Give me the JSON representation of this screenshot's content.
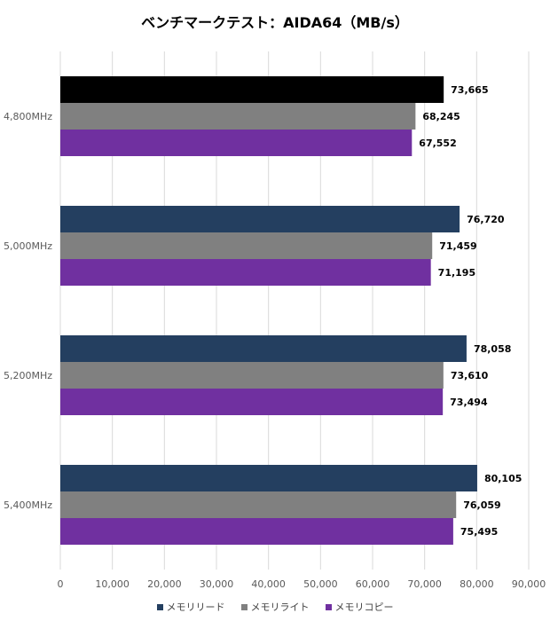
{
  "chart_data": {
    "type": "bar",
    "orientation": "horizontal",
    "title": "ベンチマークテスト：AIDA64（MB/s）",
    "categories": [
      "4,800MHz",
      "5,000MHz",
      "5,200MHz",
      "5,400MHz"
    ],
    "series": [
      {
        "name": "メモリリード",
        "color": "#243f60",
        "values": [
          73665,
          76720,
          78058,
          80105
        ],
        "labels": [
          "73,665",
          "76,720",
          "78,058",
          "80,105"
        ]
      },
      {
        "name": "メモリライト",
        "color": "#808080",
        "values": [
          68245,
          71459,
          73610,
          76059
        ],
        "labels": [
          "68,245",
          "71,459",
          "73,610",
          "76,059"
        ]
      },
      {
        "name": "メモリコピー",
        "color": "#7030a0",
        "values": [
          67552,
          71195,
          73494,
          75495
        ],
        "labels": [
          "67,552",
          "71,195",
          "73,494",
          "75,495"
        ]
      }
    ],
    "point_overrides": [
      {
        "series": 0,
        "index": 0,
        "color": "#000000"
      }
    ],
    "xlim": [
      0,
      90000
    ],
    "xticks": [
      "0",
      "10,000",
      "20,000",
      "30,000",
      "40,000",
      "50,000",
      "60,000",
      "70,000",
      "80,000",
      "90,000"
    ],
    "grid": "vertical",
    "legend": "bottom"
  }
}
